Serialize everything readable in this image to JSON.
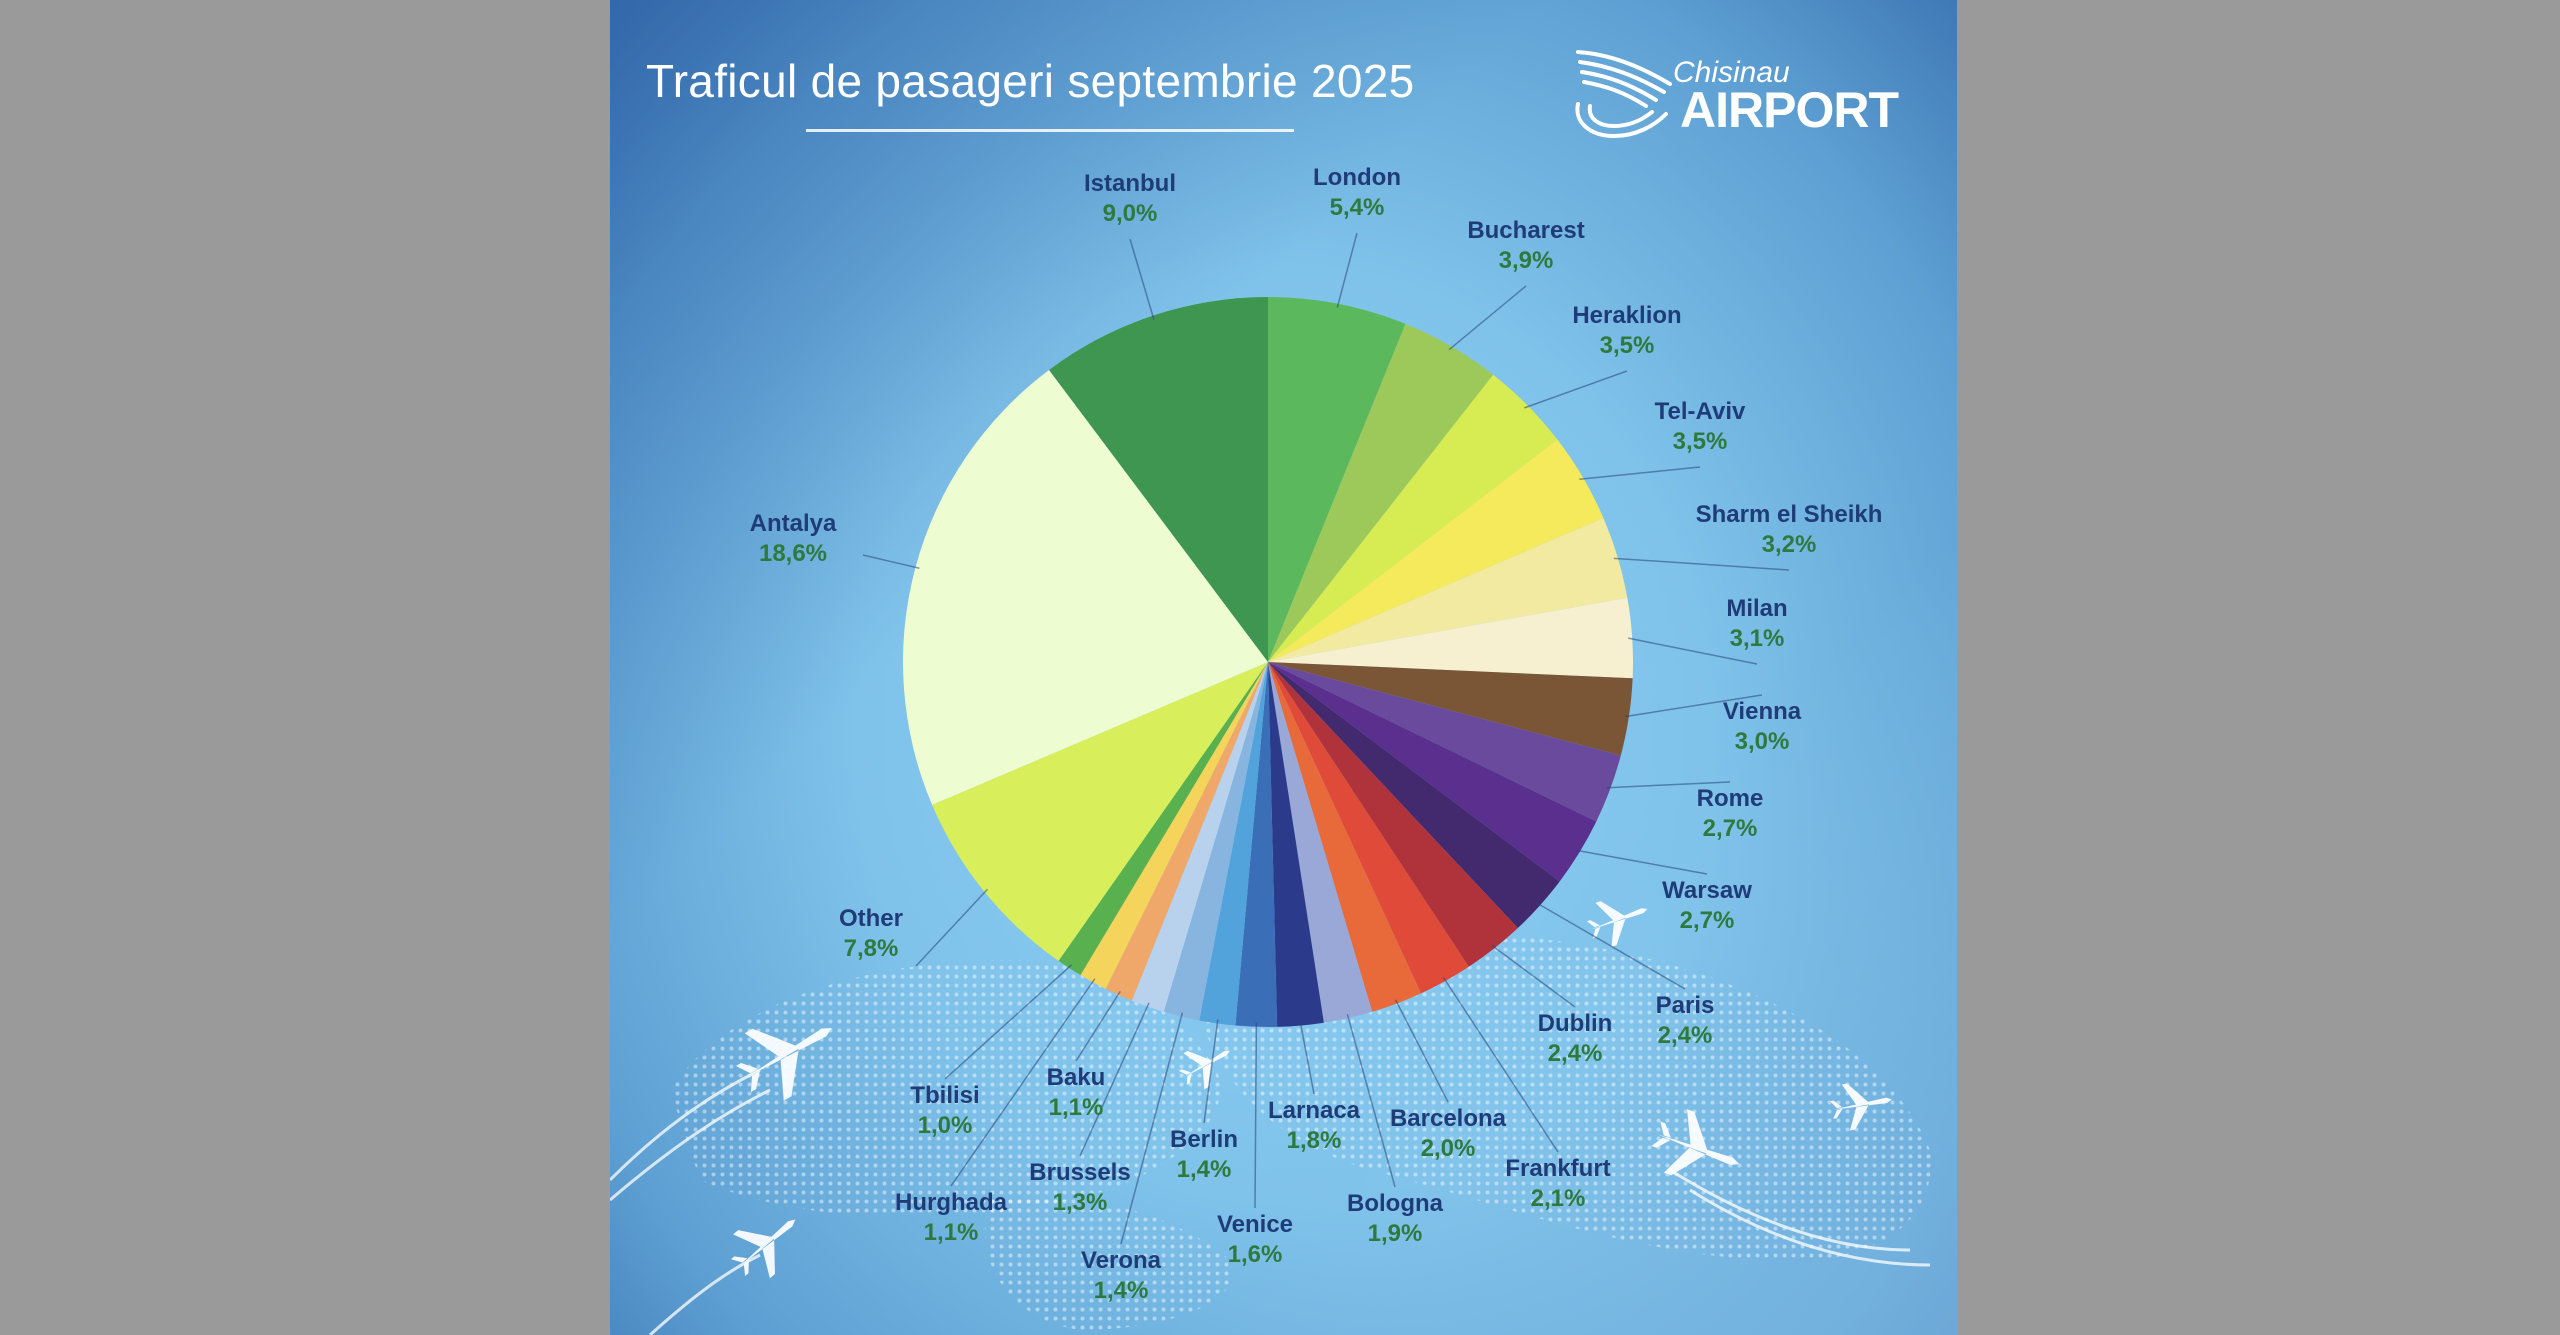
{
  "title": "Traficul de pasageri septembrie 2025",
  "logo": {
    "script": "Chisinau",
    "word": "AIRPORT"
  },
  "chart_data": {
    "type": "pie",
    "title": "Traficul de pasageri septembrie 2025",
    "start": "12 o'clock, clockwise",
    "slices": [
      {
        "label": "London",
        "value": 5.4,
        "display": "5,4%",
        "color": "#5cb85c"
      },
      {
        "label": "Bucharest",
        "value": 3.9,
        "display": "3,9%",
        "color": "#9cc95a"
      },
      {
        "label": "Heraklion",
        "value": 3.5,
        "display": "3,5%",
        "color": "#d6ec52"
      },
      {
        "label": "Tel-Aviv",
        "value": 3.5,
        "display": "3,5%",
        "color": "#f4ea5c"
      },
      {
        "label": "Sharm el Sheikh",
        "value": 3.2,
        "display": "3,2%",
        "color": "#f2eaa0"
      },
      {
        "label": "Milan",
        "value": 3.1,
        "display": "3,1%",
        "color": "#f6f0d0"
      },
      {
        "label": "Vienna",
        "value": 3.0,
        "display": "3,0%",
        "color": "#7a5636"
      },
      {
        "label": "Rome",
        "value": 2.7,
        "display": "2,7%",
        "color": "#6a4a9c"
      },
      {
        "label": "Warsaw",
        "value": 2.7,
        "display": "2,7%",
        "color": "#5a2f8e"
      },
      {
        "label": "Paris",
        "value": 2.4,
        "display": "2,4%",
        "color": "#432a6e"
      },
      {
        "label": "Dublin",
        "value": 2.4,
        "display": "2,4%",
        "color": "#b0323a"
      },
      {
        "label": "Frankfurt",
        "value": 2.1,
        "display": "2,1%",
        "color": "#e04a38"
      },
      {
        "label": "Barcelona",
        "value": 2.0,
        "display": "2,0%",
        "color": "#e86a3a"
      },
      {
        "label": "Bologna",
        "value": 1.9,
        "display": "1,9%",
        "color": "#9aa8d8"
      },
      {
        "label": "Larnaca",
        "value": 1.8,
        "display": "1,8%",
        "color": "#2c3a8c"
      },
      {
        "label": "Venice",
        "value": 1.6,
        "display": "1,6%",
        "color": "#3a6fb8"
      },
      {
        "label": "Berlin",
        "value": 1.4,
        "display": "1,4%",
        "color": "#52a2dc"
      },
      {
        "label": "Verona",
        "value": 1.4,
        "display": "1,4%",
        "color": "#88b4e0"
      },
      {
        "label": "Brussels",
        "value": 1.3,
        "display": "1,3%",
        "color": "#b8d2ee"
      },
      {
        "label": "Baku",
        "value": 1.1,
        "display": "1,1%",
        "color": "#f0a86a"
      },
      {
        "label": "Hurghada",
        "value": 1.1,
        "display": "1,1%",
        "color": "#f4d45a"
      },
      {
        "label": "Tbilisi",
        "value": 1.0,
        "display": "1,0%",
        "color": "#58b04e"
      },
      {
        "label": "Other",
        "value": 7.8,
        "display": "7,8%",
        "color": "#d8ee5a"
      },
      {
        "label": "Antalya",
        "value": 18.6,
        "display": "18,6%",
        "color": "#eefcd2"
      },
      {
        "label": "Istanbul",
        "value": 9.0,
        "display": "9,0%",
        "color": "#3f9650"
      }
    ]
  }
}
